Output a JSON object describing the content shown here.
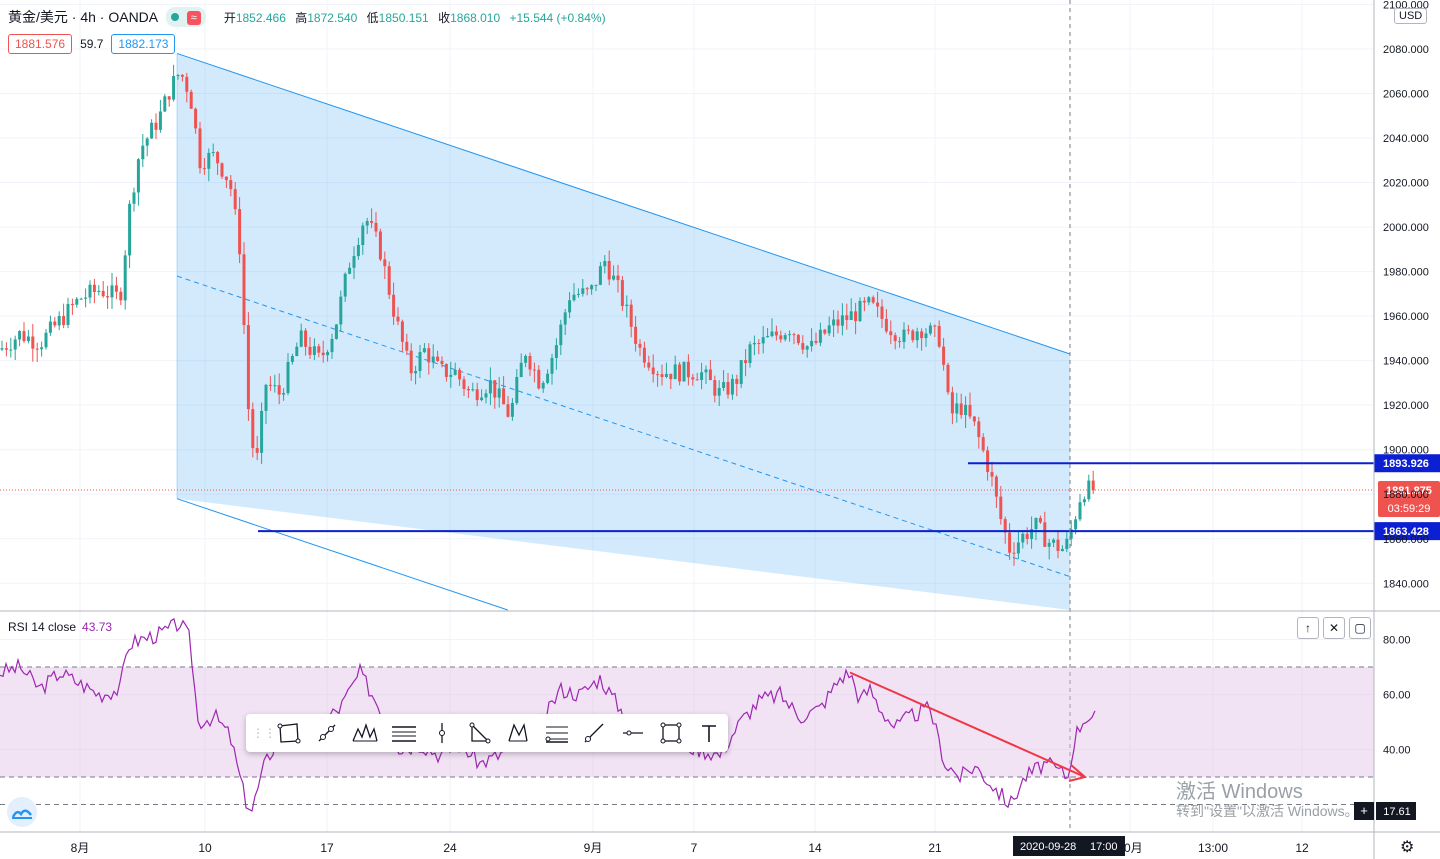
{
  "header": {
    "symbol": "黄金/美元 · 4h · OANDA",
    "approx_label": "≈",
    "ohlc": [
      {
        "label": "开",
        "value": "1852.466"
      },
      {
        "label": "高",
        "value": "1872.540"
      },
      {
        "label": "低",
        "value": "1850.151"
      },
      {
        "label": "收",
        "value": "1868.010"
      },
      {
        "label": "",
        "value": "+15.544 (+0.84%)"
      }
    ],
    "bid": "1881.576",
    "spread": "59.7",
    "ask": "1882.173"
  },
  "currency": "USD",
  "rsi_header": {
    "label": "RSI 14 close",
    "value": "43.73"
  },
  "rsi_axis_label": "17.61",
  "watermark": {
    "line1": "激活 Windows",
    "line2": "转到\"设置\"以激活 Windows。"
  },
  "pane_buttons": [
    "↑",
    "✕",
    "▢"
  ],
  "drawing_tools": [
    "rectangle-tool-icon",
    "trend-line-icon",
    "pattern-icon",
    "parallel-channel-icon",
    "vertical-line-icon",
    "triangle-tool-icon",
    "xabcd-icon",
    "fib-icon",
    "ray-icon",
    "horizontal-line-icon",
    "box-icon",
    "text-tool-icon"
  ],
  "colors": {
    "up": "#26a69a",
    "down": "#ef5350",
    "channel": "#2196f3",
    "level": "#0c1fd1",
    "rsi": "#9c27b0",
    "rsi_band": "#e1bee7",
    "arrow": "#f23645"
  },
  "chart_data": [
    {
      "type": "candlestick",
      "title": "黄金/美元 · 4h · OANDA",
      "x_tick_labels": [
        "8月",
        "10",
        "17",
        "24",
        "9月",
        "7",
        "14",
        "21",
        "2020-09-28",
        "17:00",
        "10月",
        "13:00",
        "12"
      ],
      "y_tick_labels": [
        "2100.000",
        "2080.000",
        "2060.000",
        "2040.000",
        "2020.000",
        "2000.000",
        "1980.000",
        "1960.000",
        "1940.000",
        "1920.000",
        "1900.000",
        "1880.000",
        "1860.000",
        "1840.000"
      ],
      "ylim": [
        1828,
        2102
      ],
      "price_levels": [
        {
          "label": "1893.926",
          "value": 1893.926
        },
        {
          "label": "1863.428",
          "value": 1863.428
        }
      ],
      "last_price": {
        "label": "1881.875",
        "value": 1881.875,
        "countdown": "03:59:29"
      },
      "close_path": [
        [
          0,
          1945
        ],
        [
          20,
          1952
        ],
        [
          40,
          1948
        ],
        [
          60,
          1958
        ],
        [
          80,
          1968
        ],
        [
          100,
          1972
        ],
        [
          120,
          1968
        ],
        [
          130,
          2010
        ],
        [
          140,
          2035
        ],
        [
          150,
          2042
        ],
        [
          160,
          2050
        ],
        [
          170,
          2062
        ],
        [
          180,
          2070
        ],
        [
          190,
          2060
        ],
        [
          200,
          2030
        ],
        [
          215,
          2032
        ],
        [
          230,
          2020
        ],
        [
          240,
          1990
        ],
        [
          250,
          1905
        ],
        [
          258,
          1895
        ],
        [
          265,
          1930
        ],
        [
          280,
          1925
        ],
        [
          300,
          1950
        ],
        [
          320,
          1940
        ],
        [
          335,
          1955
        ],
        [
          350,
          1985
        ],
        [
          365,
          2005
        ],
        [
          380,
          1990
        ],
        [
          395,
          1960
        ],
        [
          410,
          1935
        ],
        [
          425,
          1945
        ],
        [
          440,
          1935
        ],
        [
          455,
          1935
        ],
        [
          470,
          1925
        ],
        [
          490,
          1930
        ],
        [
          510,
          1915
        ],
        [
          525,
          1945
        ],
        [
          540,
          1930
        ],
        [
          555,
          1945
        ],
        [
          570,
          1970
        ],
        [
          590,
          1970
        ],
        [
          605,
          1985
        ],
        [
          620,
          1970
        ],
        [
          640,
          1945
        ],
        [
          660,
          1935
        ],
        [
          680,
          1935
        ],
        [
          700,
          1935
        ],
        [
          720,
          1925
        ],
        [
          735,
          1930
        ],
        [
          750,
          1945
        ],
        [
          770,
          1950
        ],
        [
          790,
          1955
        ],
        [
          810,
          1945
        ],
        [
          830,
          1955
        ],
        [
          850,
          1960
        ],
        [
          870,
          1965
        ],
        [
          890,
          1955
        ],
        [
          905,
          1950
        ],
        [
          920,
          1955
        ],
        [
          940,
          1950
        ],
        [
          950,
          1915
        ],
        [
          960,
          1920
        ],
        [
          975,
          1910
        ],
        [
          990,
          1890
        ],
        [
          1000,
          1870
        ],
        [
          1010,
          1855
        ],
        [
          1020,
          1860
        ],
        [
          1035,
          1866
        ],
        [
          1050,
          1858
        ],
        [
          1065,
          1855
        ],
        [
          1072,
          1865
        ],
        [
          1082,
          1882
        ],
        [
          1095,
          1882
        ]
      ],
      "channel": {
        "upper": [
          [
            177,
            2078
          ],
          [
            1070,
            1943
          ]
        ],
        "lower": [
          [
            177,
            1878
          ],
          [
            1070,
            1743
          ]
        ],
        "mid": [
          [
            177,
            1978
          ],
          [
            1070,
            1843
          ]
        ]
      }
    },
    {
      "type": "line",
      "title": "RSI 14 close",
      "series": [
        {
          "name": "RSI 14 close",
          "values": [
            [
              0,
              68
            ],
            [
              20,
              70
            ],
            [
              40,
              62
            ],
            [
              60,
              68
            ],
            [
              80,
              64
            ],
            [
              100,
              60
            ],
            [
              120,
              62
            ],
            [
              128,
              78
            ],
            [
              140,
              80
            ],
            [
              160,
              82
            ],
            [
              180,
              86
            ],
            [
              190,
              80
            ],
            [
              198,
              50
            ],
            [
              215,
              52
            ],
            [
              230,
              45
            ],
            [
              245,
              22
            ],
            [
              252,
              18
            ],
            [
              265,
              35
            ],
            [
              280,
              45
            ],
            [
              300,
              40
            ],
            [
              320,
              50
            ],
            [
              340,
              55
            ],
            [
              360,
              68
            ],
            [
              380,
              55
            ],
            [
              400,
              40
            ],
            [
              420,
              42
            ],
            [
              440,
              38
            ],
            [
              460,
              42
            ],
            [
              480,
              35
            ],
            [
              500,
              38
            ],
            [
              520,
              45
            ],
            [
              540,
              48
            ],
            [
              560,
              62
            ],
            [
              580,
              60
            ],
            [
              600,
              66
            ],
            [
              620,
              55
            ],
            [
              640,
              42
            ],
            [
              660,
              45
            ],
            [
              680,
              42
            ],
            [
              700,
              40
            ],
            [
              720,
              38
            ],
            [
              740,
              50
            ],
            [
              760,
              58
            ],
            [
              780,
              60
            ],
            [
              800,
              52
            ],
            [
              820,
              55
            ],
            [
              840,
              66
            ],
            [
              850,
              68
            ],
            [
              860,
              58
            ],
            [
              870,
              62
            ],
            [
              880,
              55
            ],
            [
              895,
              48
            ],
            [
              910,
              52
            ],
            [
              930,
              55
            ],
            [
              945,
              35
            ],
            [
              960,
              30
            ],
            [
              975,
              34
            ],
            [
              990,
              28
            ],
            [
              1010,
              20
            ],
            [
              1025,
              30
            ],
            [
              1045,
              35
            ],
            [
              1060,
              32
            ],
            [
              1068,
              30
            ],
            [
              1075,
              45
            ],
            [
              1085,
              52
            ],
            [
              1095,
              52
            ]
          ]
        }
      ],
      "ylim": [
        10,
        90
      ],
      "y_tick_labels": [
        "80.00",
        "60.00",
        "40.00"
      ],
      "band": [
        30,
        70
      ],
      "divergence_arrow": [
        [
          850,
          68
        ],
        [
          1085,
          30
        ]
      ]
    }
  ]
}
